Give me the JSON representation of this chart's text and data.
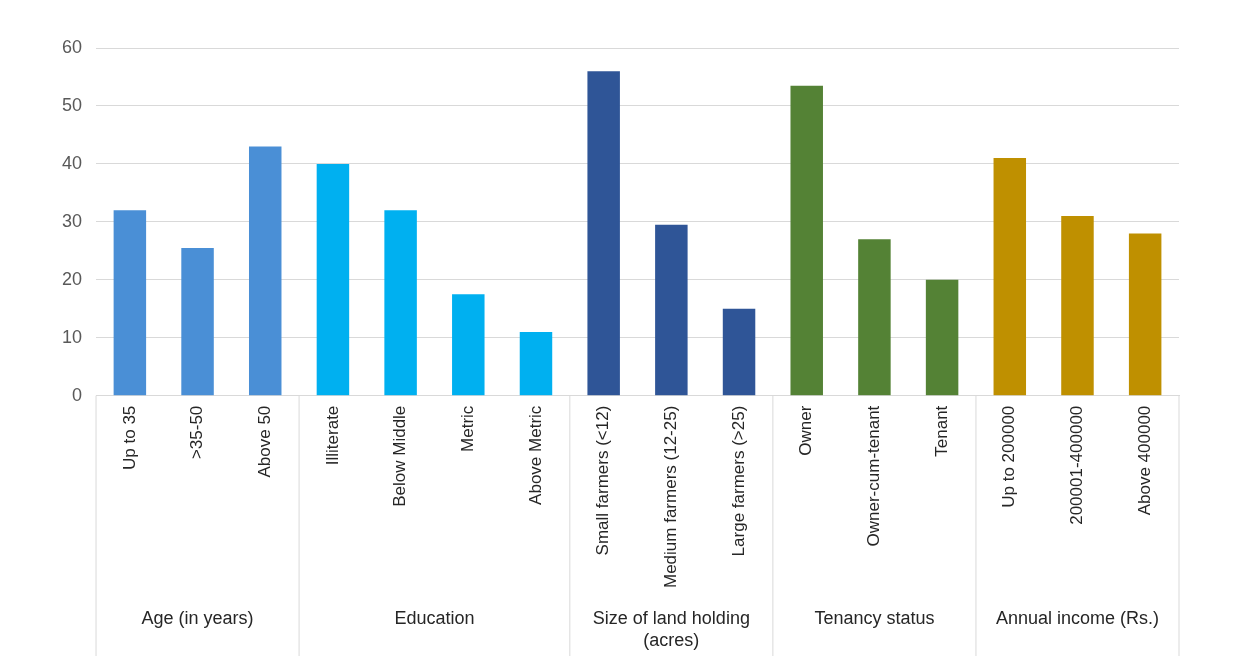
{
  "chart_data": {
    "type": "bar",
    "categories": [
      "Up to 35",
      ">35-50",
      "Above 50",
      "Illiterate",
      "Below Middle",
      "Metric",
      "Above Metric",
      "Small farmers (<12)",
      "Medium farmers (12-25)",
      "Large farmers (>25)",
      "Owner",
      "Owner-cum-tenant",
      "Tenant",
      "Up to 200000",
      "200001-400000",
      "Above 400000"
    ],
    "values": [
      32,
      25.5,
      43,
      40,
      32,
      17.5,
      11,
      56,
      29.5,
      15,
      53.5,
      27,
      20,
      41,
      31,
      28
    ],
    "colors": [
      "#4a8fd6",
      "#4a8fd6",
      "#4a8fd6",
      "#00b0f0",
      "#00b0f0",
      "#00b0f0",
      "#00b0f0",
      "#2f5597",
      "#2f5597",
      "#2f5597",
      "#548235",
      "#548235",
      "#548235",
      "#bf9000",
      "#bf9000",
      "#bf9000"
    ],
    "annotations": [
      "Age (in years)",
      "Education",
      "Size of land holding (acres)",
      "Tenancy status",
      "Annual income (Rs.)"
    ],
    "ylim": [
      0,
      60
    ],
    "yticks": [
      0,
      10,
      20,
      30,
      40,
      50,
      60
    ],
    "grid": "y",
    "legend": false
  }
}
